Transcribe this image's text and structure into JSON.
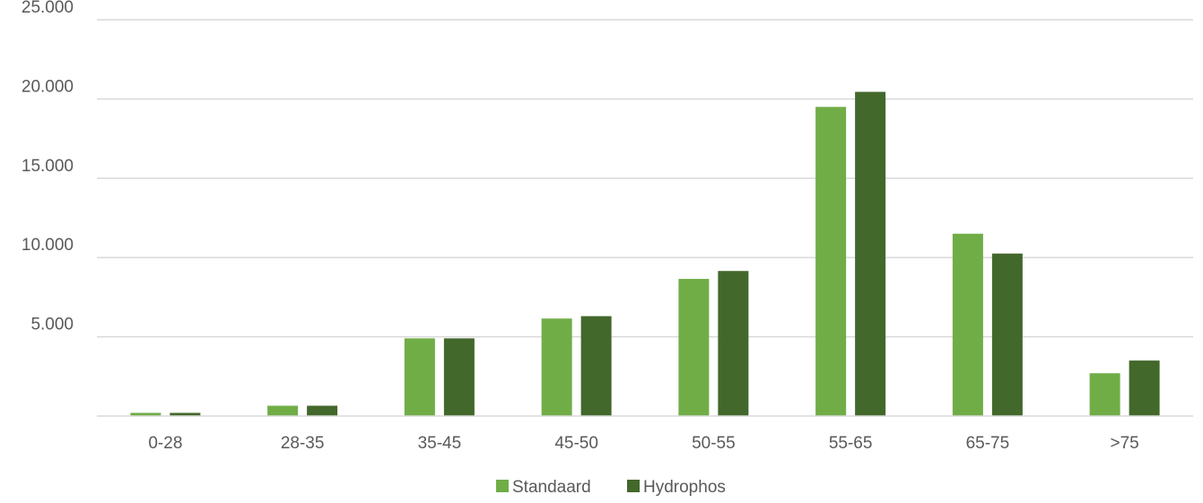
{
  "chart_data": {
    "type": "bar",
    "categories": [
      "0-28",
      "28-35",
      "35-45",
      "45-50",
      "50-55",
      "55-65",
      "65-75",
      ">75"
    ],
    "series": [
      {
        "name": "Standaard",
        "values": [
          200,
          650,
          4900,
          6150,
          8650,
          19500,
          11500,
          2700
        ],
        "color": "#70ad47"
      },
      {
        "name": "Hydrophos",
        "values": [
          200,
          650,
          4900,
          6300,
          9150,
          20450,
          10250,
          3500
        ],
        "color": "#43682b"
      }
    ],
    "y_ticks": [
      "25.000",
      "20.000",
      "15.000",
      "10.000",
      "5.000"
    ],
    "y_tick_values": [
      25000,
      20000,
      15000,
      10000,
      5000
    ],
    "ylim": [
      0,
      25000
    ],
    "grid": true,
    "legend_position": "bottom"
  }
}
